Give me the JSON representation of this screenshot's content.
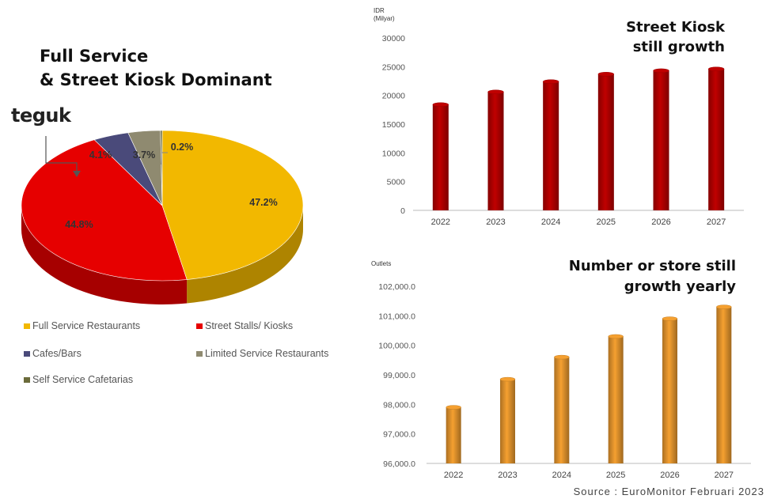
{
  "pie": {
    "title_line1": "Full Service",
    "title_line2": "& Street Kiosk Dominant",
    "logo_text": "teguk"
  },
  "kiosk": {
    "title_line1": "Street Kiosk",
    "title_line2": "still growth",
    "unit_line1": "IDR",
    "unit_line2": "(Milyar)"
  },
  "store": {
    "title_line1": "Number or store still",
    "title_line2": "growth yearly",
    "unit": "Outlets"
  },
  "source": "Source : EuroMonitor Februari 2023",
  "chart_data": [
    {
      "type": "pie",
      "title": "Full Service & Street Kiosk Dominant",
      "slices": [
        {
          "label": "Full Service Restaurants",
          "value": 47.2,
          "display": "47.2%",
          "color": "#f2b800"
        },
        {
          "label": "Street Stalls/ Kiosks",
          "value": 44.8,
          "display": "44.8%",
          "color": "#e60000"
        },
        {
          "label": "Cafes/Bars",
          "value": 4.1,
          "display": "4.1%",
          "color": "#4a4a7a"
        },
        {
          "label": "Limited Service Restaurants",
          "value": 3.7,
          "display": "3.7%",
          "color": "#8f8a70"
        },
        {
          "label": "Self Service Cafetarias",
          "value": 0.2,
          "display": "0.2%",
          "color": "#6b6b3a"
        }
      ],
      "legend_position": "bottom"
    },
    {
      "type": "bar",
      "title": "Street Kiosk still growth",
      "ylabel": "IDR (Milyar)",
      "categories": [
        "2022",
        "2023",
        "2024",
        "2025",
        "2026",
        "2027"
      ],
      "values": [
        18400,
        20600,
        22400,
        23700,
        24300,
        24600
      ],
      "ylim": [
        0,
        30000
      ],
      "yticks": [
        0,
        5000,
        10000,
        15000,
        20000,
        25000,
        30000
      ],
      "ytick_labels": [
        "0",
        "5000",
        "10000",
        "15000",
        "20000",
        "25000",
        "30000"
      ],
      "color": "#c00000"
    },
    {
      "type": "bar",
      "title": "Number or store still growth yearly",
      "ylabel": "Outlets",
      "categories": [
        "2022",
        "2023",
        "2024",
        "2025",
        "2026",
        "2027"
      ],
      "values": [
        97900,
        98850,
        99600,
        100300,
        100900,
        101300
      ],
      "ylim": [
        96000,
        102000
      ],
      "yticks": [
        96000,
        97000,
        98000,
        99000,
        100000,
        101000,
        102000
      ],
      "ytick_labels": [
        "96,000.0",
        "97,000.0",
        "98,000.0",
        "99,000.0",
        "100,000.0",
        "101,000.0",
        "102,000.0"
      ],
      "color": "#f5a030"
    }
  ]
}
